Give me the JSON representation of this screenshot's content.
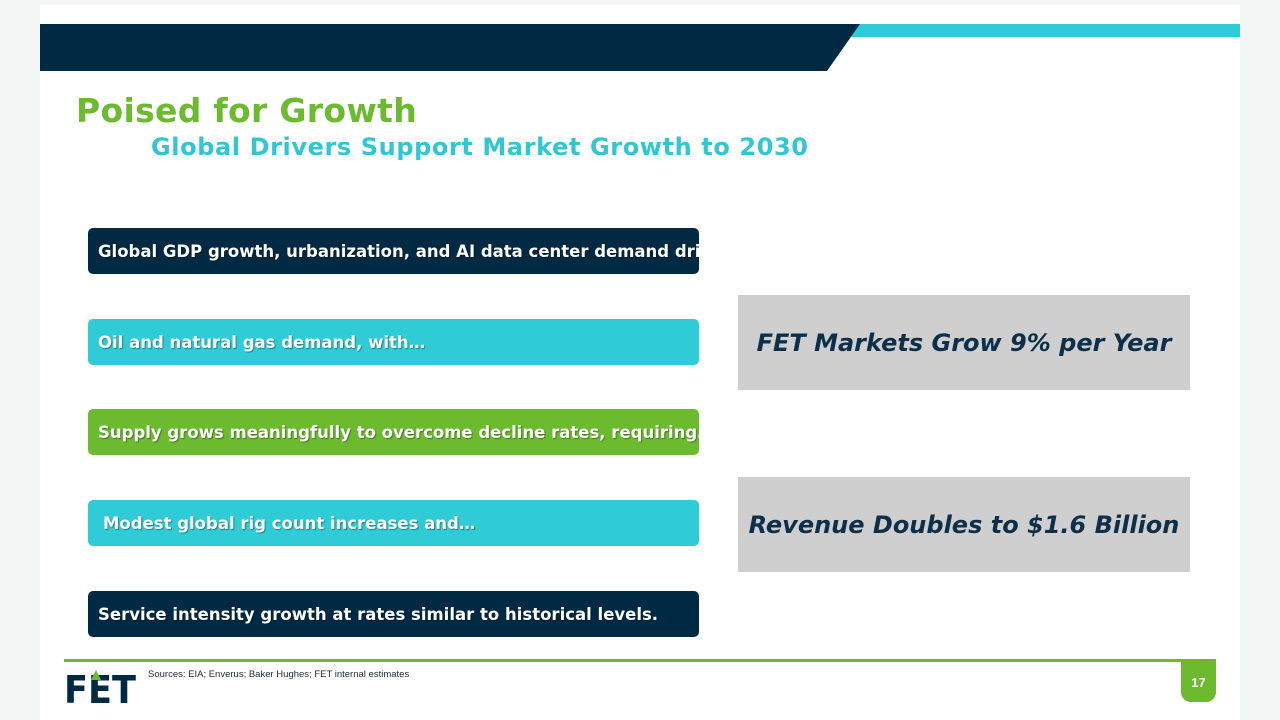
{
  "header": {
    "title": "Poised for Growth",
    "subtitle": "Global Drivers Support Market Growth to 2030"
  },
  "drivers": [
    {
      "label": "Global GDP growth, urbanization, and AI data center demand drives…",
      "color": "#002a43"
    },
    {
      "label": "Oil and natural gas demand, with…",
      "color": "#2fcbd6"
    },
    {
      "label": "Supply grows meaningfully to overcome decline rates, requiring…",
      "color": "#6cbb2e"
    },
    {
      "label": "Modest global rig count increases and…",
      "color": "#2fcbd6"
    },
    {
      "label": "Service intensity growth at rates similar to historical levels.",
      "color": "#002a43"
    }
  ],
  "outcomes": [
    {
      "label": "FET Markets Grow 9% per Year"
    },
    {
      "label": "Revenue Doubles to $1.6 Billion"
    }
  ],
  "footer": {
    "logo_text": "FET",
    "sources": "Sources: EIA; Enverus; Baker Hughes; FET internal estimates",
    "page_number": "17"
  },
  "colors": {
    "navy": "#002a43",
    "teal": "#2fcbd6",
    "green": "#6cbb2e",
    "gray_box": "#cfcfcf"
  }
}
